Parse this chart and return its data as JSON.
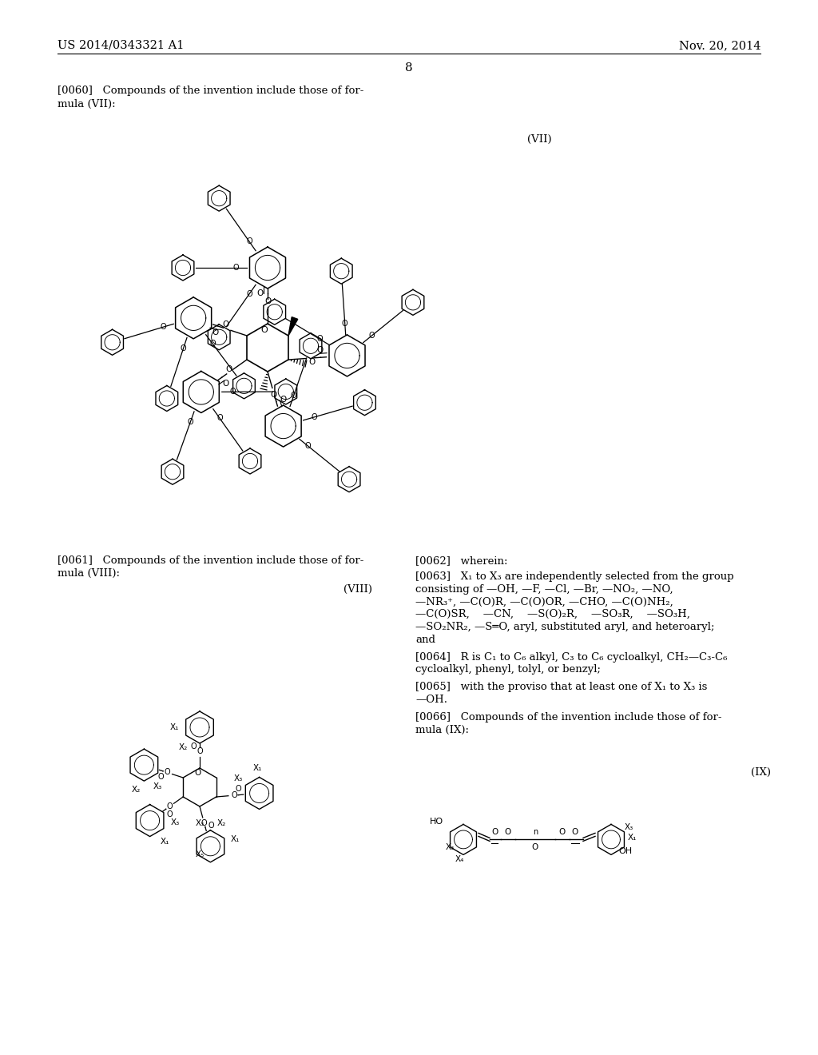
{
  "bg_color": "#ffffff",
  "header_left": "US 2014/0343321 A1",
  "header_right": "Nov. 20, 2014",
  "page_number": "8",
  "para0060": "[0060]   Compounds of the invention include those of for-\nmula (VII):",
  "formula_VII_label": "(VII)",
  "para0061_l1": "[0061]   Compounds of the invention include those of for-",
  "para0061_l2": "mula (VIII):",
  "formula_VIII_label": "(VIII)",
  "para0062": "[0062]   wherein:",
  "para0063_l1": "[0063]   X₁ to X₃ are independently selected from the group",
  "para0063_l2": "consisting of —OH, —F, —Cl, —Br, —NO₂, —NO,",
  "para0063_l3": "—NR₃⁺, —C(O)R, —C(O)OR, —CHO, —C(O)NH₂,",
  "para0063_l4": "—C(O)SR,    —CN,    —S(O)₂R,    —SO₃R,    —SO₃H,",
  "para0063_l5": "—SO₂NR₂, —S═O, aryl, substituted aryl, and heteroaryl;",
  "para0063_l6": "and",
  "para0064_l1": "[0064]   R is C₁ to C₆ alkyl, C₃ to C₆ cycloalkyl, CH₂—C₃-C₆",
  "para0064_l2": "cycloalkyl, phenyl, tolyl, or benzyl;",
  "para0065_l1": "[0065]   with the proviso that at least one of X₁ to X₃ is",
  "para0065_l2": "—OH.",
  "para0066_l1": "[0066]   Compounds of the invention include those of for-",
  "para0066_l2": "mula (IX):",
  "formula_IX_label": "(IX)"
}
